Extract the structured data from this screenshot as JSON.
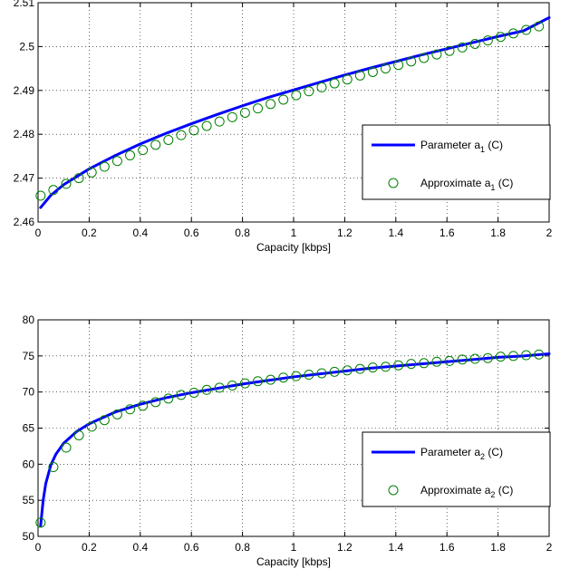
{
  "chart_data": [
    {
      "type": "line",
      "xlabel": "Capacity [kbps]",
      "ylabel": "",
      "xlim": [
        0,
        2
      ],
      "ylim": [
        2.46,
        2.51
      ],
      "xticks": [
        "0",
        "0.2",
        "0.4",
        "0.6",
        "0.8",
        "1",
        "1.2",
        "1.4",
        "1.6",
        "1.8",
        "2"
      ],
      "yticks": [
        "2.46",
        "2.47",
        "2.48",
        "2.49",
        "2.5",
        "2.51"
      ],
      "grid": true,
      "legend_position": "lower-right",
      "series": [
        {
          "name": "Parameter a_1 (C)",
          "legend": {
            "main": "Parameter a",
            "sub": "1",
            "suffix": " (C)"
          },
          "style": "solid-line",
          "color": "#0000ff",
          "x": [
            0.01,
            0.05,
            0.1,
            0.2,
            0.3,
            0.4,
            0.5,
            0.6,
            0.7,
            0.8,
            0.9,
            1.0,
            1.1,
            1.2,
            1.3,
            1.4,
            1.5,
            1.6,
            1.7,
            1.8,
            1.9,
            2.0
          ],
          "y": [
            2.4633,
            2.4661,
            2.4685,
            2.4721,
            2.4751,
            2.4778,
            2.4802,
            2.4824,
            2.4845,
            2.4865,
            2.4884,
            2.4901,
            2.4918,
            2.4935,
            2.4951,
            2.4966,
            2.4981,
            2.4995,
            2.5009,
            2.5023,
            2.5036,
            2.5066
          ]
        },
        {
          "name": "Approximate a_1 (C)",
          "legend": {
            "main": "Approximate a",
            "sub": "1",
            "suffix": " (C)"
          },
          "style": "circle-markers",
          "color": "#008000",
          "x": [
            0.01,
            0.06,
            0.11,
            0.16,
            0.21,
            0.26,
            0.31,
            0.36,
            0.41,
            0.46,
            0.51,
            0.56,
            0.61,
            0.66,
            0.71,
            0.76,
            0.81,
            0.86,
            0.91,
            0.96,
            1.01,
            1.06,
            1.11,
            1.16,
            1.21,
            1.26,
            1.31,
            1.36,
            1.41,
            1.46,
            1.51,
            1.56,
            1.61,
            1.66,
            1.71,
            1.76,
            1.81,
            1.86,
            1.91,
            1.96
          ],
          "y": [
            2.466,
            2.4673,
            2.4687,
            2.47,
            2.4713,
            2.4726,
            2.4739,
            2.4752,
            2.4764,
            2.4776,
            2.4787,
            2.4798,
            2.4809,
            2.4819,
            2.4829,
            2.4839,
            2.4849,
            2.4859,
            2.4869,
            2.4879,
            2.4889,
            2.4898,
            2.4907,
            2.4916,
            2.4925,
            2.4934,
            2.4942,
            2.495,
            2.4958,
            2.4966,
            2.4974,
            2.4982,
            2.499,
            2.4998,
            2.5006,
            2.5014,
            2.5022,
            2.503,
            2.5038,
            2.5046
          ]
        }
      ]
    },
    {
      "type": "line",
      "xlabel": "Capacity [kbps]",
      "ylabel": "",
      "xlim": [
        0,
        2
      ],
      "ylim": [
        50,
        80
      ],
      "xticks": [
        "0",
        "0.2",
        "0.4",
        "0.6",
        "0.8",
        "1",
        "1.2",
        "1.4",
        "1.6",
        "1.8",
        "2"
      ],
      "yticks": [
        "50",
        "55",
        "60",
        "65",
        "70",
        "75",
        "80"
      ],
      "grid": true,
      "legend_position": "lower-right",
      "series": [
        {
          "name": "Parameter a_2 (C)",
          "legend": {
            "main": "Parameter a",
            "sub": "2",
            "suffix": " (C)"
          },
          "style": "solid-line",
          "color": "#0000ff",
          "x": [
            0.01,
            0.02,
            0.03,
            0.05,
            0.07,
            0.1,
            0.15,
            0.2,
            0.3,
            0.4,
            0.5,
            0.6,
            0.7,
            0.8,
            0.9,
            1.0,
            1.1,
            1.2,
            1.3,
            1.4,
            1.5,
            1.6,
            1.7,
            1.8,
            1.9,
            2.0
          ],
          "y": [
            51.5,
            55.0,
            57.3,
            59.9,
            61.4,
            62.9,
            64.5,
            65.6,
            67.2,
            68.3,
            69.2,
            69.9,
            70.5,
            71.1,
            71.6,
            72.1,
            72.5,
            72.9,
            73.3,
            73.6,
            73.9,
            74.2,
            74.5,
            74.8,
            75.0,
            75.3
          ]
        },
        {
          "name": "Approximate a_2 (C)",
          "legend": {
            "main": "Approximate a",
            "sub": "2",
            "suffix": " (C)"
          },
          "style": "circle-markers",
          "color": "#008000",
          "x": [
            0.01,
            0.06,
            0.11,
            0.16,
            0.21,
            0.26,
            0.31,
            0.36,
            0.41,
            0.46,
            0.51,
            0.56,
            0.61,
            0.66,
            0.71,
            0.76,
            0.81,
            0.86,
            0.91,
            0.96,
            1.01,
            1.06,
            1.11,
            1.16,
            1.21,
            1.26,
            1.31,
            1.36,
            1.41,
            1.46,
            1.51,
            1.56,
            1.61,
            1.66,
            1.71,
            1.76,
            1.81,
            1.86,
            1.91,
            1.96
          ],
          "y": [
            51.9,
            59.6,
            62.3,
            64.0,
            65.2,
            66.1,
            66.9,
            67.6,
            68.1,
            68.6,
            69.1,
            69.6,
            69.9,
            70.3,
            70.6,
            70.9,
            71.2,
            71.5,
            71.7,
            72.0,
            72.2,
            72.4,
            72.6,
            72.8,
            73.0,
            73.2,
            73.4,
            73.5,
            73.7,
            73.9,
            74.0,
            74.2,
            74.3,
            74.5,
            74.6,
            74.7,
            74.9,
            75.0,
            75.1,
            75.2
          ]
        }
      ]
    }
  ]
}
